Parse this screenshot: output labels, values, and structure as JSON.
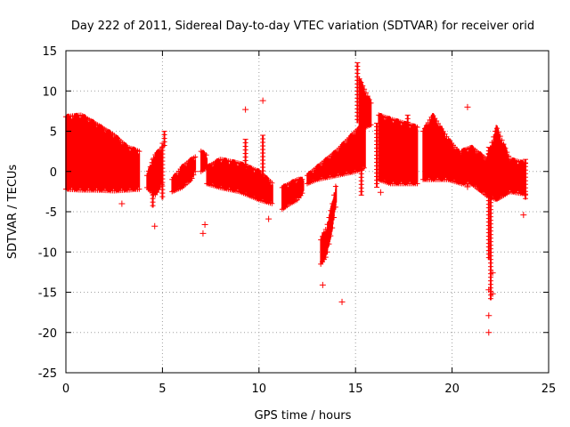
{
  "chart_data": {
    "type": "scatter",
    "title": "Day 222 of 2011, Sidereal Day-to-day VTEC variation (SDTVAR) for receiver orid",
    "xlabel": "GPS time / hours",
    "ylabel": "SDTVAR / TECUs",
    "xlim": [
      0,
      25
    ],
    "ylim": [
      -25,
      15
    ],
    "x_ticks": [
      0,
      5,
      10,
      15,
      20,
      25
    ],
    "y_ticks": [
      -25,
      -20,
      -15,
      -10,
      -5,
      0,
      5,
      10,
      15
    ],
    "x_tick_labels": [
      "0",
      "5",
      "10",
      "15",
      "20",
      "25"
    ],
    "y_tick_labels": [
      "-25",
      "-20",
      "-15",
      "-10",
      "-5",
      "0",
      "5",
      "10",
      "15"
    ],
    "grid": true,
    "marker": "+",
    "series_color": "#ff0000",
    "bands": [
      {
        "segment": "a",
        "x": [
          0.0,
          0.8,
          1.5,
          2.5,
          3.2,
          3.8
        ],
        "upper": [
          6.8,
          7.0,
          6.0,
          4.5,
          3.0,
          2.5
        ],
        "lower": [
          -2.2,
          -2.3,
          -2.3,
          -2.4,
          -2.3,
          -2.2
        ]
      },
      {
        "segment": "b",
        "x": [
          4.2,
          4.6,
          5.0
        ],
        "upper": [
          -0.5,
          2.0,
          3.0
        ],
        "lower": [
          -2.0,
          -3.0,
          -1.5
        ]
      },
      {
        "segment": "c",
        "x": [
          5.5,
          6.0,
          6.5,
          6.7
        ],
        "upper": [
          -1.0,
          0.5,
          1.5,
          1.8
        ],
        "lower": [
          -2.5,
          -2.0,
          -1.0,
          0.0
        ]
      },
      {
        "segment": "d",
        "x": [
          7.0,
          7.3
        ],
        "upper": [
          2.5,
          2.0
        ],
        "lower": [
          0.0,
          0.5
        ]
      },
      {
        "segment": "e",
        "x": [
          7.3,
          8.0,
          9.0,
          10.0,
          10.7
        ],
        "upper": [
          0.5,
          1.5,
          1.0,
          0.0,
          -1.5
        ],
        "lower": [
          -1.5,
          -2.0,
          -2.5,
          -3.5,
          -4.0
        ]
      },
      {
        "segment": "f",
        "x": [
          11.2,
          11.6,
          12.0,
          12.3
        ],
        "upper": [
          -2.0,
          -1.5,
          -1.0,
          -1.0
        ],
        "lower": [
          -4.7,
          -4.0,
          -3.5,
          -2.5
        ]
      },
      {
        "segment": "g",
        "x": [
          13.2,
          13.5,
          13.8,
          14.0
        ],
        "upper": [
          -8.5,
          -7.0,
          -4.0,
          -1.5
        ],
        "lower": [
          -11.5,
          -10.5,
          -7.0,
          -4.0
        ]
      },
      {
        "segment": "h",
        "x": [
          12.5,
          13.0,
          14.0,
          15.0,
          15.5
        ],
        "upper": [
          -0.5,
          0.5,
          2.5,
          5.0,
          6.0
        ],
        "lower": [
          -1.5,
          -1.0,
          -0.5,
          0.0,
          0.5
        ]
      },
      {
        "segment": "i",
        "x": [
          15.2,
          15.5,
          15.8
        ],
        "upper": [
          11.5,
          10.0,
          8.5
        ],
        "lower": [
          5.0,
          5.5,
          5.8
        ]
      },
      {
        "segment": "j",
        "x": [
          16.2,
          16.8,
          17.5,
          18.2
        ],
        "upper": [
          7.0,
          6.5,
          6.0,
          5.5
        ],
        "lower": [
          -1.0,
          -1.5,
          -1.5,
          -1.5
        ]
      },
      {
        "segment": "k",
        "x": [
          18.5,
          19.0,
          19.8,
          20.5
        ],
        "upper": [
          5.0,
          7.0,
          4.0,
          2.0
        ],
        "lower": [
          -1.0,
          -1.0,
          -1.0,
          -1.5
        ]
      },
      {
        "segment": "l",
        "x": [
          20.5,
          21.0,
          21.8,
          22.3,
          23.0,
          23.8
        ],
        "upper": [
          2.5,
          3.0,
          1.5,
          5.5,
          1.5,
          1.0
        ],
        "lower": [
          -1.5,
          -1.5,
          -3.0,
          -3.5,
          -2.5,
          -2.8
        ]
      }
    ],
    "spikes": [
      {
        "x": 4.5,
        "y_min": -4.5,
        "y_max": 1.5
      },
      {
        "x": 5.0,
        "y_min": -3.5,
        "y_max": 3.5
      },
      {
        "x": 5.1,
        "y_min": 3.0,
        "y_max": 5.0
      },
      {
        "x": 9.3,
        "y_min": -2.0,
        "y_max": 4.0
      },
      {
        "x": 10.2,
        "y_min": -2.5,
        "y_max": 4.5
      },
      {
        "x": 15.1,
        "y_min": 6.0,
        "y_max": 13.5
      },
      {
        "x": 15.3,
        "y_min": -3.0,
        "y_max": 9.0
      },
      {
        "x": 16.1,
        "y_min": -2.0,
        "y_max": 6.0
      },
      {
        "x": 17.7,
        "y_min": 4.0,
        "y_max": 7.0
      },
      {
        "x": 21.9,
        "y_min": -11.0,
        "y_max": 3.0
      },
      {
        "x": 22.0,
        "y_min": -16.0,
        "y_max": 1.0
      },
      {
        "x": 23.8,
        "y_min": -3.5,
        "y_max": 1.5
      }
    ],
    "outliers": [
      [
        2.9,
        -4.0
      ],
      [
        4.6,
        -6.8
      ],
      [
        7.1,
        -7.7
      ],
      [
        7.2,
        -6.6
      ],
      [
        9.3,
        7.7
      ],
      [
        10.2,
        8.8
      ],
      [
        10.5,
        -5.9
      ],
      [
        13.3,
        -14.1
      ],
      [
        14.3,
        -16.2
      ],
      [
        16.3,
        -2.6
      ],
      [
        20.8,
        8.0
      ],
      [
        20.8,
        -1.9
      ],
      [
        21.9,
        -14.7
      ],
      [
        21.9,
        -17.9
      ],
      [
        21.9,
        -20.0
      ],
      [
        22.1,
        -15.2
      ],
      [
        22.1,
        -12.6
      ],
      [
        23.7,
        -5.4
      ]
    ]
  }
}
